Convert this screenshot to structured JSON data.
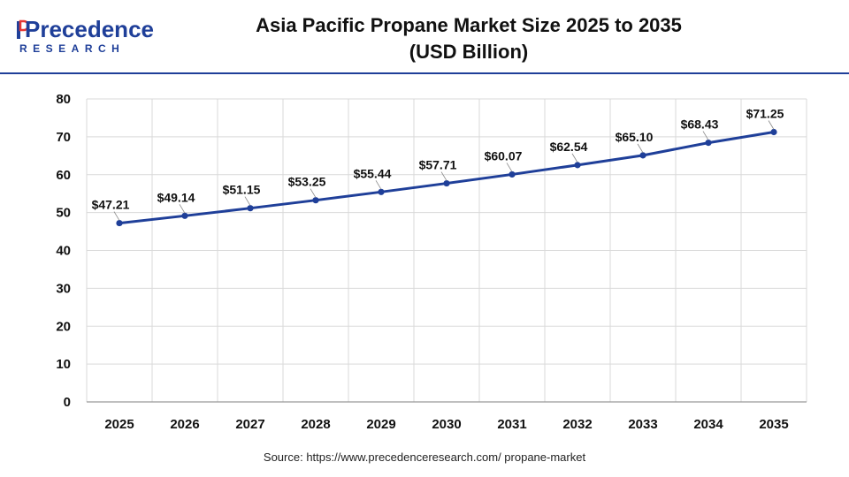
{
  "header": {
    "logo_word": "Precedence",
    "logo_sub": "RESEARCH",
    "title_line1": "Asia Pacific Propane Market Size 2025 to 2035",
    "title_line2": "(USD Billion)"
  },
  "source": "Source: https://www.precedenceresearch.com/ propane-market",
  "colors": {
    "line": "#1f3f99",
    "accent": "#1f3f99",
    "grid": "#d9d9d9"
  },
  "chart_data": {
    "type": "line",
    "title": "Asia Pacific Propane Market Size 2025 to 2035 (USD Billion)",
    "categories": [
      "2025",
      "2026",
      "2027",
      "2028",
      "2029",
      "2030",
      "2031",
      "2032",
      "2033",
      "2034",
      "2035"
    ],
    "values": [
      47.21,
      49.14,
      51.15,
      53.25,
      55.44,
      57.71,
      60.07,
      62.54,
      65.1,
      68.43,
      71.25
    ],
    "data_labels": [
      "$47.21",
      "$49.14",
      "$51.15",
      "$53.25",
      "$55.44",
      "$57.71",
      "$60.07",
      "$62.54",
      "$65.10",
      "$68.43",
      "$71.25"
    ],
    "yticks": [
      "0",
      "10",
      "20",
      "30",
      "40",
      "50",
      "60",
      "70",
      "80"
    ],
    "ylim": [
      0,
      80
    ],
    "grid": true,
    "legend": "none",
    "xlabel": "",
    "ylabel": ""
  }
}
